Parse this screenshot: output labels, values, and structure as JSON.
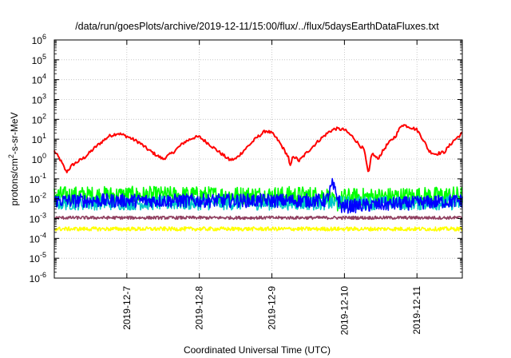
{
  "chart_data": {
    "type": "line",
    "title": "/data/run/goesPlots/archive/2019-12-11/15:00/flux/../flux/5daysEarthDataFluxes.txt",
    "xlabel": "Coordinated Universal Time (UTC)",
    "ylabel": {
      "pre": "protons/cm",
      "sup": "2",
      "post": "-s-sr-MeV"
    },
    "yscale": "log",
    "ylim": [
      1e-06,
      1000000.0
    ],
    "y_ticks": [
      {
        "value": 1e-06,
        "base": "10",
        "exp": "-6"
      },
      {
        "value": 1e-05,
        "base": "10",
        "exp": "-5"
      },
      {
        "value": 0.0001,
        "base": "10",
        "exp": "-4"
      },
      {
        "value": 0.001,
        "base": "10",
        "exp": "-3"
      },
      {
        "value": 0.01,
        "base": "10",
        "exp": "-2"
      },
      {
        "value": 0.1,
        "base": "10",
        "exp": "-1"
      },
      {
        "value": 1,
        "base": "10",
        "exp": "0"
      },
      {
        "value": 10,
        "base": "10",
        "exp": "1"
      },
      {
        "value": 100,
        "base": "10",
        "exp": "2"
      },
      {
        "value": 1000,
        "base": "10",
        "exp": "3"
      },
      {
        "value": 10000,
        "base": "10",
        "exp": "4"
      },
      {
        "value": 100000,
        "base": "10",
        "exp": "5"
      },
      {
        "value": 1000000,
        "base": "10",
        "exp": "6"
      }
    ],
    "xlim": [
      "2019-12-06T00:00",
      "2019-12-11T15:00"
    ],
    "x_ticks": [
      "2019-12-7",
      "2019-12-8",
      "2019-12-9",
      "2019-12-10",
      "2019-12-11"
    ],
    "grid": true,
    "series": [
      {
        "color": "#ff0000",
        "noise_decades": 0.08,
        "points": [
          [
            "2019-12-06T00:00",
            2.5
          ],
          [
            "2019-12-06T02:00",
            0.9
          ],
          [
            "2019-12-06T04:00",
            0.22
          ],
          [
            "2019-12-06T06:00",
            0.5
          ],
          [
            "2019-12-06T10:00",
            1.2
          ],
          [
            "2019-12-06T14:00",
            4.5
          ],
          [
            "2019-12-06T18:00",
            14
          ],
          [
            "2019-12-06T21:00",
            20
          ],
          [
            "2019-12-07T00:00",
            14
          ],
          [
            "2019-12-07T04:00",
            7
          ],
          [
            "2019-12-07T07:00",
            3
          ],
          [
            "2019-12-07T10:00",
            1.5
          ],
          [
            "2019-12-07T12:00",
            1.0
          ],
          [
            "2019-12-07T15:00",
            2
          ],
          [
            "2019-12-07T19:00",
            7
          ],
          [
            "2019-12-07T22:00",
            12
          ],
          [
            "2019-12-08T00:00",
            13
          ],
          [
            "2019-12-08T03:00",
            6
          ],
          [
            "2019-12-08T07:00",
            2
          ],
          [
            "2019-12-08T10:00",
            0.9
          ],
          [
            "2019-12-08T12:00",
            1.0
          ],
          [
            "2019-12-08T15:00",
            3
          ],
          [
            "2019-12-08T19:00",
            12
          ],
          [
            "2019-12-08T22:00",
            27
          ],
          [
            "2019-12-09T00:00",
            20
          ],
          [
            "2019-12-09T02:00",
            9
          ],
          [
            "2019-12-09T04:00",
            3
          ],
          [
            "2019-12-09T05:30",
            1.2
          ],
          [
            "2019-12-09T06:00",
            0.35
          ],
          [
            "2019-12-09T07:00",
            1.5
          ],
          [
            "2019-12-09T09:00",
            0.8
          ],
          [
            "2019-12-09T12:00",
            2.5
          ],
          [
            "2019-12-09T16:00",
            10
          ],
          [
            "2019-12-09T19:00",
            24
          ],
          [
            "2019-12-09T21:00",
            34
          ],
          [
            "2019-12-10T00:00",
            30
          ],
          [
            "2019-12-10T03:00",
            12
          ],
          [
            "2019-12-10T05:00",
            5
          ],
          [
            "2019-12-10T06:30",
            3
          ],
          [
            "2019-12-10T07:30",
            0.4
          ],
          [
            "2019-12-10T08:00",
            0.15
          ],
          [
            "2019-12-10T09:00",
            2.0
          ],
          [
            "2019-12-10T11:00",
            1.0
          ],
          [
            "2019-12-10T14:00",
            5
          ],
          [
            "2019-12-10T17:00",
            15
          ],
          [
            "2019-12-10T19:00",
            55
          ],
          [
            "2019-12-10T21:00",
            45
          ],
          [
            "2019-12-11T00:00",
            30
          ],
          [
            "2019-12-11T02:00",
            10
          ],
          [
            "2019-12-11T04:00",
            2.5
          ],
          [
            "2019-12-11T06:00",
            1.8
          ],
          [
            "2019-12-11T09:00",
            2.2
          ],
          [
            "2019-12-11T12:00",
            8
          ],
          [
            "2019-12-11T15:00",
            20
          ]
        ]
      },
      {
        "color": "#00ff00",
        "noise_decades": 0.45,
        "points": [
          [
            "2019-12-06T00:00",
            0.015
          ],
          [
            "2019-12-09T18:00",
            0.015
          ],
          [
            "2019-12-09T21:00",
            0.005
          ],
          [
            "2019-12-10T00:00",
            0.012
          ],
          [
            "2019-12-11T15:00",
            0.015
          ]
        ]
      },
      {
        "color": "#00c8c8",
        "noise_decades": 0.35,
        "points": [
          [
            "2019-12-06T00:00",
            0.006
          ],
          [
            "2019-12-11T15:00",
            0.006
          ]
        ]
      },
      {
        "color": "#0000ff",
        "noise_decades": 0.35,
        "points": [
          [
            "2019-12-06T00:00",
            0.008
          ],
          [
            "2019-12-09T18:00",
            0.008
          ],
          [
            "2019-12-09T20:00",
            0.05
          ],
          [
            "2019-12-09T23:00",
            0.004
          ],
          [
            "2019-12-11T15:00",
            0.008
          ]
        ]
      },
      {
        "color": "#904060",
        "noise_decades": 0.08,
        "points": [
          [
            "2019-12-06T00:00",
            0.0011
          ],
          [
            "2019-12-11T15:00",
            0.0011
          ]
        ]
      },
      {
        "color": "#ffff00",
        "noise_decades": 0.1,
        "points": [
          [
            "2019-12-06T00:00",
            0.0003
          ],
          [
            "2019-12-11T15:00",
            0.0003
          ]
        ]
      }
    ]
  }
}
